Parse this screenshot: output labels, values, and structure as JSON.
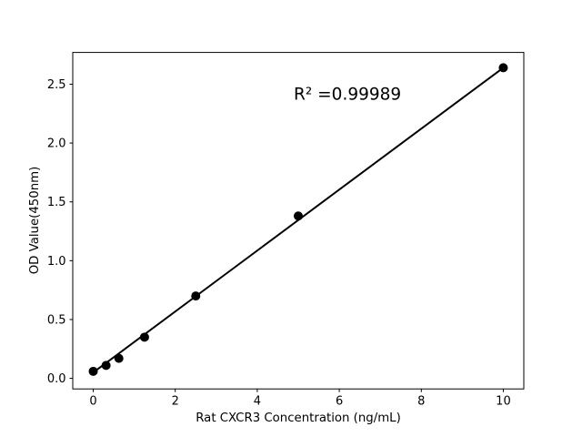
{
  "figure": {
    "background": "#ffffff"
  },
  "chart_data": {
    "type": "scatter",
    "title": "",
    "xlabel": "Rat CXCR3 Concentration (ng/mL)",
    "ylabel": "OD Value(450nm)",
    "x": [
      0,
      0.3125,
      0.625,
      1.25,
      2.5,
      5,
      10
    ],
    "y": [
      0.06,
      0.11,
      0.17,
      0.35,
      0.7,
      1.38,
      2.64
    ],
    "fit_line": {
      "x": [
        0,
        10
      ],
      "y": [
        0.05,
        2.64
      ]
    },
    "annotation": {
      "text": "R² =0.99989",
      "x": 6.2,
      "y": 2.42
    },
    "xtick_labels": [
      "0",
      "2",
      "4",
      "6",
      "8",
      "10"
    ],
    "ytick_labels": [
      "0.0",
      "0.5",
      "1.0",
      "1.5",
      "2.0",
      "2.5"
    ],
    "xlim": [
      -0.5,
      10.5
    ],
    "ylim": [
      -0.09,
      2.77
    ],
    "grid": false,
    "legend": null,
    "marker_color": "#000000",
    "line_color": "#000000",
    "axis_color": "#000000"
  }
}
